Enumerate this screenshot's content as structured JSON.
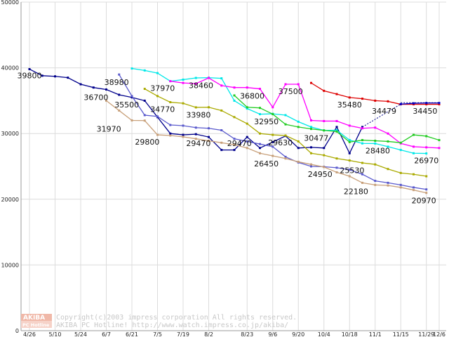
{
  "chart_data": {
    "type": "line",
    "ylim": [
      0,
      50000
    ],
    "yticks": [
      0,
      10000,
      20000,
      30000,
      40000,
      50000
    ],
    "x": [
      "4/26",
      "5/3",
      "5/10",
      "5/17",
      "5/24",
      "5/31",
      "6/7",
      "6/14",
      "6/21",
      "6/28",
      "7/5",
      "7/12",
      "7/19",
      "7/26",
      "8/2",
      "8/9",
      "8/16",
      "8/23",
      "8/30",
      "9/6",
      "9/13",
      "9/20",
      "9/27",
      "10/4",
      "10/11",
      "10/18",
      "10/25",
      "11/1",
      "11/8",
      "11/15",
      "11/22",
      "11/29",
      "12/6"
    ],
    "x_tick_labels": [
      "4/26",
      "5/10",
      "5/24",
      "6/7",
      "6/21",
      "7/5",
      "7/19",
      "8/2",
      "8/23",
      "9/6",
      "9/20",
      "10/4",
      "10/18",
      "11/1",
      "11/15",
      "11/29",
      "12/6"
    ],
    "grid": true,
    "series": [
      {
        "color": "#00008b",
        "values": [
          39800,
          38800,
          38700,
          38500,
          37500,
          37000,
          36700,
          35900,
          35500,
          35000,
          32500,
          30000,
          29800,
          29900,
          29470,
          27500,
          27500,
          29470,
          27800,
          28700,
          29630,
          27800,
          27900,
          27800,
          31000,
          27000,
          31000,
          null,
          null,
          null,
          null,
          null,
          null
        ]
      },
      {
        "color": "#5a5acd",
        "values": [
          null,
          null,
          null,
          null,
          null,
          null,
          null,
          38980,
          35700,
          32800,
          32600,
          31300,
          31200,
          30900,
          30800,
          30500,
          29200,
          28800,
          28400,
          28000,
          26450,
          25600,
          25000,
          24950,
          24800,
          24500,
          23800,
          22800,
          22500,
          22180,
          21800,
          21500,
          null
        ]
      },
      {
        "color": "#c8a07a",
        "values": [
          null,
          null,
          null,
          null,
          null,
          null,
          35000,
          33500,
          32000,
          31970,
          29800,
          29700,
          29500,
          29200,
          28900,
          28600,
          28300,
          27800,
          27000,
          26600,
          26200,
          25700,
          25300,
          24900,
          24100,
          23500,
          22500,
          22180,
          22100,
          21800,
          21400,
          20970,
          null
        ]
      },
      {
        "color": "#aaaa00",
        "values": [
          null,
          null,
          null,
          null,
          null,
          null,
          null,
          null,
          null,
          36800,
          35700,
          34770,
          34600,
          33980,
          34000,
          33500,
          32500,
          31500,
          30000,
          29800,
          29700,
          28800,
          27000,
          26700,
          26200,
          25900,
          25530,
          25300,
          24600,
          24000,
          23800,
          23500,
          null
        ]
      },
      {
        "color": "#00e8e8",
        "values": [
          null,
          null,
          null,
          null,
          null,
          null,
          null,
          null,
          39900,
          39600,
          39200,
          37970,
          38200,
          38460,
          38500,
          38400,
          35000,
          33800,
          32950,
          33000,
          32800,
          31800,
          31000,
          30477,
          30500,
          29000,
          28500,
          28480,
          28000,
          27500,
          27000,
          26970,
          null
        ]
      },
      {
        "color": "#ff00ff",
        "values": [
          null,
          null,
          null,
          null,
          null,
          null,
          null,
          null,
          null,
          null,
          null,
          37970,
          37700,
          37600,
          38460,
          37300,
          37000,
          37000,
          36800,
          34000,
          37500,
          37500,
          32000,
          31900,
          31900,
          31200,
          30800,
          30900,
          30000,
          28500,
          28000,
          27900,
          27800
        ]
      },
      {
        "color": "#22cc22",
        "values": [
          null,
          null,
          null,
          null,
          null,
          null,
          null,
          null,
          null,
          null,
          null,
          null,
          null,
          null,
          null,
          null,
          35800,
          34000,
          33900,
          32950,
          31400,
          31000,
          30700,
          30477,
          30300,
          28700,
          29000,
          28900,
          28800,
          28600,
          29800,
          29600,
          29000
        ]
      },
      {
        "color": "#dd0000",
        "values": [
          null,
          null,
          null,
          null,
          null,
          null,
          null,
          null,
          null,
          null,
          null,
          null,
          null,
          null,
          null,
          null,
          null,
          null,
          null,
          null,
          null,
          null,
          37700,
          36500,
          36000,
          35480,
          35300,
          35000,
          34900,
          34450,
          34450,
          34450,
          34450
        ]
      },
      {
        "color": "#0000cc",
        "values": [
          null,
          null,
          null,
          null,
          null,
          null,
          null,
          null,
          null,
          null,
          null,
          null,
          null,
          null,
          null,
          null,
          null,
          null,
          null,
          null,
          null,
          null,
          null,
          null,
          null,
          null,
          null,
          null,
          null,
          34479,
          34600,
          34650,
          34650
        ]
      }
    ],
    "dashed_lines": [
      {
        "from": [
          26,
          31000
        ],
        "to": [
          29,
          34479
        ]
      },
      {
        "from": [
          29,
          34700
        ],
        "to": [
          32,
          34700
        ]
      }
    ],
    "labels": [
      {
        "text": "39800",
        "x": 0,
        "y": 38400
      },
      {
        "text": "36700",
        "x": 5.2,
        "y": 35100
      },
      {
        "text": "38980",
        "x": 6.8,
        "y": 37400
      },
      {
        "text": "35500",
        "x": 7.6,
        "y": 34000
      },
      {
        "text": "31970",
        "x": 6.2,
        "y": 30300
      },
      {
        "text": "37970",
        "x": 10.4,
        "y": 36500
      },
      {
        "text": "34770",
        "x": 10.4,
        "y": 33300
      },
      {
        "text": "29800",
        "x": 9.2,
        "y": 28300
      },
      {
        "text": "38460",
        "x": 13.4,
        "y": 36900
      },
      {
        "text": "33980",
        "x": 13.2,
        "y": 32400
      },
      {
        "text": "29470",
        "x": 13.2,
        "y": 28100
      },
      {
        "text": "29470",
        "x": 16.4,
        "y": 28100
      },
      {
        "text": "36800",
        "x": 17.4,
        "y": 35300
      },
      {
        "text": "32950",
        "x": 18.5,
        "y": 31400
      },
      {
        "text": "26450",
        "x": 18.5,
        "y": 25000
      },
      {
        "text": "29630",
        "x": 19.6,
        "y": 28200
      },
      {
        "text": "37500",
        "x": 20.4,
        "y": 36000
      },
      {
        "text": "30477",
        "x": 22.4,
        "y": 28900
      },
      {
        "text": "24950",
        "x": 22.7,
        "y": 23400
      },
      {
        "text": "35480",
        "x": 25.0,
        "y": 34000
      },
      {
        "text": "25530",
        "x": 25.2,
        "y": 24000
      },
      {
        "text": "22180",
        "x": 25.5,
        "y": 20800
      },
      {
        "text": "28480",
        "x": 27.2,
        "y": 27000
      },
      {
        "text": "34479",
        "x": 27.7,
        "y": 33000
      },
      {
        "text": "34450",
        "x": 30.9,
        "y": 33000
      },
      {
        "text": "26970",
        "x": 31.0,
        "y": 25500
      },
      {
        "text": "20970",
        "x": 30.8,
        "y": 19400
      }
    ]
  },
  "copyright": {
    "badge_top": "AKIBA",
    "badge_bottom": "PC Hotline",
    "line1": "Copyright(c)2003 impress corporation All rights reserved.",
    "line2": "AKIBA PC Hotline!  http://www.watch.impress.co.jp/akiba/"
  }
}
